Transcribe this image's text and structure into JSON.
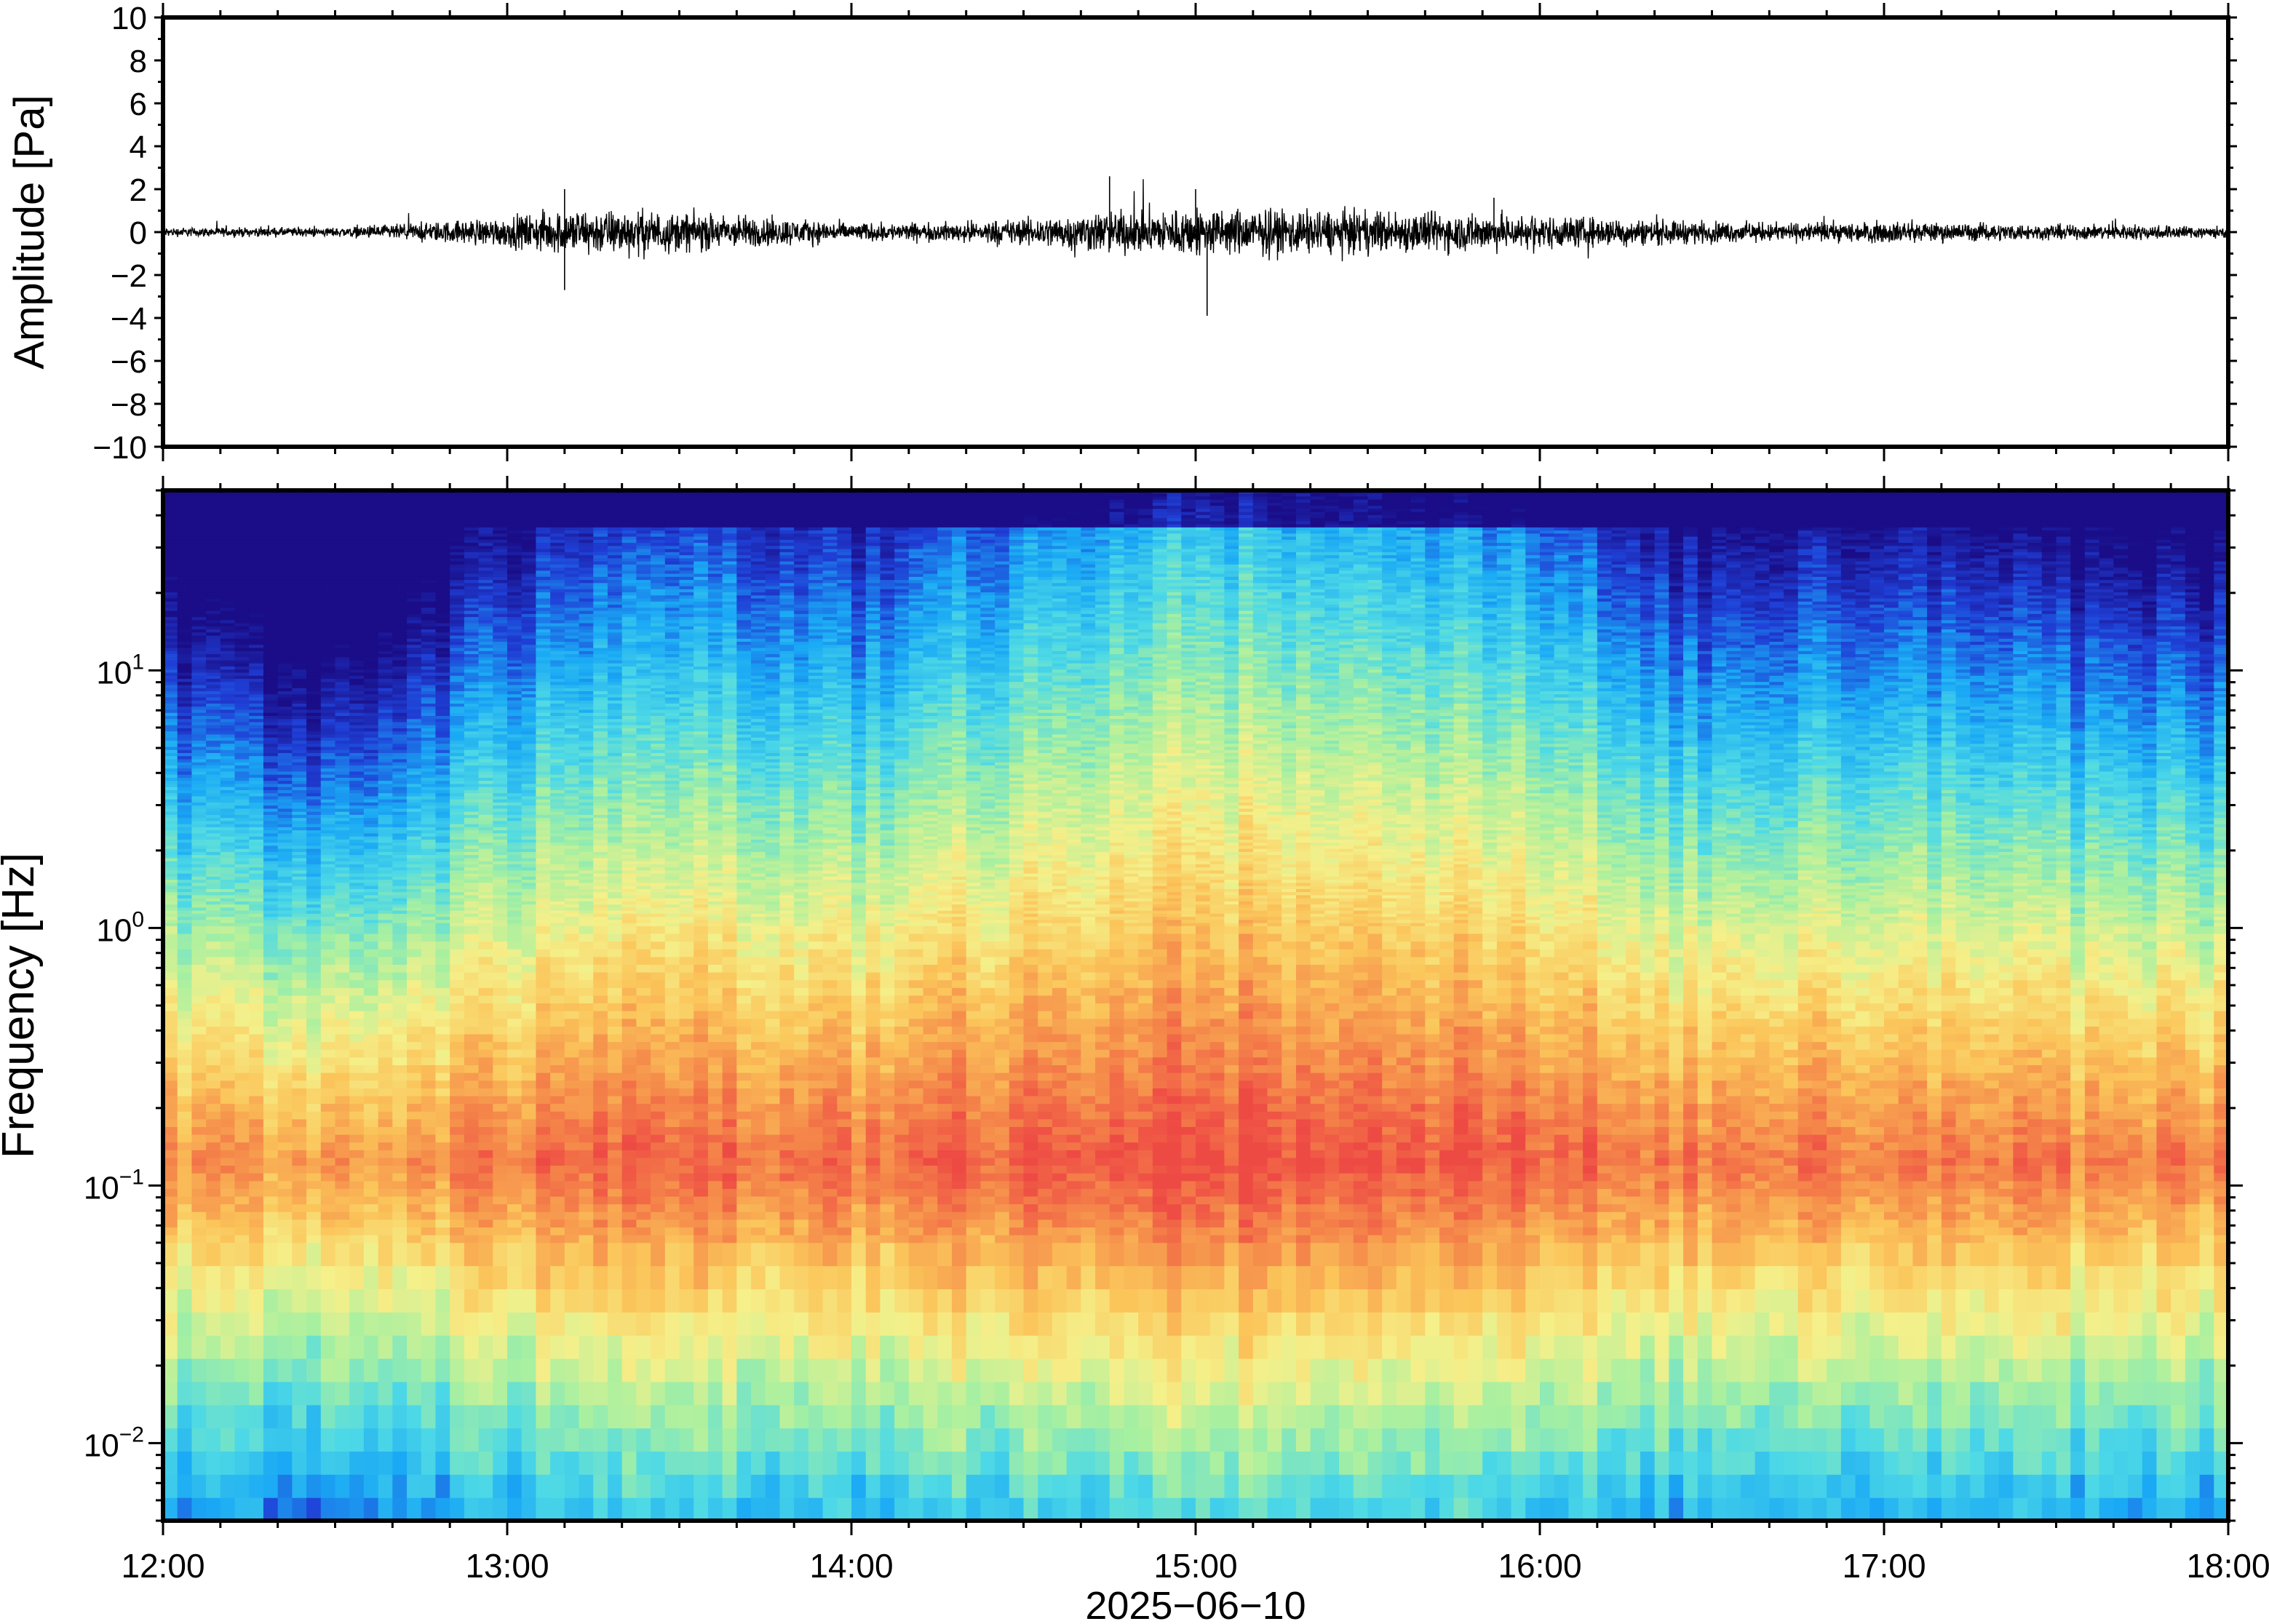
{
  "chart_data": [
    {
      "type": "line",
      "ylabel": "Amplitude [Pa]",
      "ylim": [
        -10,
        10
      ],
      "yticks": [
        "10",
        "8",
        "6",
        "4",
        "2",
        "0",
        "−2",
        "−4",
        "−6",
        "−8",
        "−10"
      ],
      "x_range": [
        "12:00",
        "18:00"
      ],
      "grid": false,
      "series": [
        {
          "color": "#000000",
          "envelope_note_free": true,
          "times": [
            "12:00",
            "12:30",
            "12:45",
            "13:00",
            "13:10",
            "13:20",
            "13:30",
            "13:45",
            "14:00",
            "14:15",
            "14:30",
            "14:45",
            "15:00",
            "15:15",
            "15:30",
            "15:45",
            "16:00",
            "16:15",
            "16:30",
            "16:45",
            "17:00",
            "17:15",
            "17:30",
            "17:45",
            "18:00"
          ],
          "peak_amplitude": [
            0.3,
            0.3,
            0.6,
            1.0,
            1.5,
            1.5,
            1.3,
            1.0,
            0.6,
            0.6,
            0.9,
            1.4,
            1.6,
            1.5,
            1.4,
            1.3,
            1.1,
            0.9,
            0.7,
            0.6,
            0.7,
            0.6,
            0.5,
            0.5,
            0.4
          ],
          "extremes": [
            {
              "time": "13:10",
              "value": 2.0
            },
            {
              "time": "13:10",
              "value": -2.7
            },
            {
              "time": "14:45",
              "value": 2.6
            },
            {
              "time": "15:02",
              "value": -3.9
            },
            {
              "time": "15:00",
              "value": 2.0
            },
            {
              "time": "15:52",
              "value": 1.6
            }
          ]
        }
      ]
    },
    {
      "type": "heatmap",
      "ylabel": "Frequency [Hz]",
      "xlabel": "2025−06−10",
      "yscale": "log",
      "ylim": [
        0.005,
        50
      ],
      "ytick_labels": [
        {
          "base": "10",
          "exp": "1",
          "value": 10
        },
        {
          "base": "10",
          "exp": "0",
          "value": 1
        },
        {
          "base": "10",
          "exp": "−1",
          "value": 0.1
        },
        {
          "base": "10",
          "exp": "−2",
          "value": 0.01
        }
      ],
      "x_tick_labels": [
        "12:00",
        "13:00",
        "14:00",
        "15:00",
        "16:00",
        "17:00",
        "18:00"
      ],
      "colormap": [
        "#1a0d87",
        "#1f3fd6",
        "#1aa9f5",
        "#4dd9e6",
        "#a8f0a0",
        "#f5f08a",
        "#fbc55a",
        "#f5894a",
        "#ee4a44"
      ],
      "description_free_intensity": {
        "times": [
          "12:00",
          "12:30",
          "13:00",
          "13:30",
          "14:00",
          "14:30",
          "15:00",
          "15:30",
          "16:00",
          "16:30",
          "17:00",
          "17:30",
          "18:00"
        ],
        "activity": [
          0.35,
          0.15,
          0.55,
          0.7,
          0.6,
          0.8,
          0.95,
          0.9,
          0.8,
          0.5,
          0.6,
          0.5,
          0.45
        ]
      }
    }
  ]
}
